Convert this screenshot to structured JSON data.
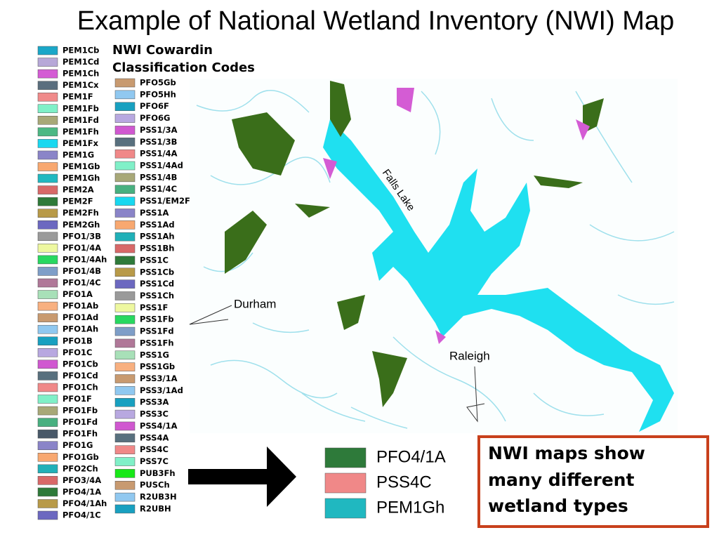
{
  "title": "Example of National Wetland Inventory (NWI) Map",
  "legend": {
    "heading_line1": "NWI Cowardin",
    "heading_line2": "Classification Codes",
    "column1": [
      {
        "label": "PEM1Cb",
        "color": "#1aa7c8"
      },
      {
        "label": "PEM1Cd",
        "color": "#b7a8d8"
      },
      {
        "label": "PEM1Ch",
        "color": "#d45cd4"
      },
      {
        "label": "PEM1Cx",
        "color": "#5a6e7e"
      },
      {
        "label": "PEM1F",
        "color": "#f08a8a"
      },
      {
        "label": "PEM1Fb",
        "color": "#7ff0c8"
      },
      {
        "label": "PEM1Fd",
        "color": "#a8a878"
      },
      {
        "label": "PEM1Fh",
        "color": "#4cb884"
      },
      {
        "label": "PEM1Fx",
        "color": "#1ad8f0"
      },
      {
        "label": "PEM1G",
        "color": "#8a84c8"
      },
      {
        "label": "PEM1Gb",
        "color": "#f8a870"
      },
      {
        "label": "PEM1Gh",
        "color": "#20b8c0"
      },
      {
        "label": "PEM2A",
        "color": "#d86868"
      },
      {
        "label": "PEM2F",
        "color": "#2e7a3a"
      },
      {
        "label": "PEM2Fh",
        "color": "#b89a48"
      },
      {
        "label": "PEM2Gh",
        "color": "#6c68c0"
      },
      {
        "label": "PFO1/3B",
        "color": "#9a9a9a"
      },
      {
        "label": "PFO1/4A",
        "color": "#eef8a0"
      },
      {
        "label": "PFO1/4Ah",
        "color": "#28d860"
      },
      {
        "label": "PFO1/4B",
        "color": "#7e9ec8"
      },
      {
        "label": "PFO1/4C",
        "color": "#b07898"
      },
      {
        "label": "PFO1A",
        "color": "#a8e0b8"
      },
      {
        "label": "PFO1Ab",
        "color": "#f8b080"
      },
      {
        "label": "PFO1Ad",
        "color": "#c89a70"
      },
      {
        "label": "PFO1Ah",
        "color": "#90c8f0"
      },
      {
        "label": "PFO1B",
        "color": "#18a0c0"
      },
      {
        "label": "PFO1C",
        "color": "#b8a8e0"
      },
      {
        "label": "PFO1Cb",
        "color": "#d058d0"
      },
      {
        "label": "PFO1Cd",
        "color": "#58707e"
      },
      {
        "label": "PFO1Ch",
        "color": "#f08888"
      },
      {
        "label": "PFO1F",
        "color": "#80f0c8"
      },
      {
        "label": "PFO1Fb",
        "color": "#a8a878"
      },
      {
        "label": "PFO1Fd",
        "color": "#48b080"
      },
      {
        "label": "PFO1Fh",
        "color": "#485868"
      },
      {
        "label": "PFO1G",
        "color": "#8a84c8"
      },
      {
        "label": "PFO1Gb",
        "color": "#f8a870"
      },
      {
        "label": "PFO2Ch",
        "color": "#20b0b8"
      },
      {
        "label": "PFO3/4A",
        "color": "#d86868"
      },
      {
        "label": "PFO4/1A",
        "color": "#2e7a3a"
      },
      {
        "label": "PFO4/1Ah",
        "color": "#b89a48"
      },
      {
        "label": "PFO4/1C",
        "color": "#6c68c0"
      }
    ],
    "column2": [
      {
        "label": "PFO5Gb",
        "color": "#c89a70"
      },
      {
        "label": "PFO5Hh",
        "color": "#90c8f0"
      },
      {
        "label": "PFO6F",
        "color": "#18a0c0"
      },
      {
        "label": "PFO6G",
        "color": "#b8a8e0"
      },
      {
        "label": "PSS1/3A",
        "color": "#d058d0"
      },
      {
        "label": "PSS1/3B",
        "color": "#58707e"
      },
      {
        "label": "PSS1/4A",
        "color": "#f08888"
      },
      {
        "label": "PSS1/4Ad",
        "color": "#80f0c8"
      },
      {
        "label": "PSS1/4B",
        "color": "#a8a878"
      },
      {
        "label": "PSS1/4C",
        "color": "#48b080"
      },
      {
        "label": "PSS1/EM2F",
        "color": "#18d8f0"
      },
      {
        "label": "PSS1A",
        "color": "#8a84c8"
      },
      {
        "label": "PSS1Ad",
        "color": "#f8a870"
      },
      {
        "label": "PSS1Ah",
        "color": "#20b0b8"
      },
      {
        "label": "PSS1Bh",
        "color": "#d86868"
      },
      {
        "label": "PSS1C",
        "color": "#2e7a3a"
      },
      {
        "label": "PSS1Cb",
        "color": "#b89a48"
      },
      {
        "label": "PSS1Cd",
        "color": "#6c68c0"
      },
      {
        "label": "PSS1Ch",
        "color": "#9a9a9a"
      },
      {
        "label": "PSS1F",
        "color": "#eef8a0"
      },
      {
        "label": "PSS1Fb",
        "color": "#28d860"
      },
      {
        "label": "PSS1Fd",
        "color": "#7e9ec8"
      },
      {
        "label": "PSS1Fh",
        "color": "#b07898"
      },
      {
        "label": "PSS1G",
        "color": "#a8e0b8"
      },
      {
        "label": "PSS1Gb",
        "color": "#f8b080"
      },
      {
        "label": "PSS3/1A",
        "color": "#c89a70"
      },
      {
        "label": "PSS3/1Ad",
        "color": "#90c8f0"
      },
      {
        "label": "PSS3A",
        "color": "#18a0c0"
      },
      {
        "label": "PSS3C",
        "color": "#b8a8e0"
      },
      {
        "label": "PSS4/1A",
        "color": "#d058d0"
      },
      {
        "label": "PSS4A",
        "color": "#58707e"
      },
      {
        "label": "PSS4C",
        "color": "#f08888"
      },
      {
        "label": "PSS7C",
        "color": "#80f0c8"
      },
      {
        "label": "PUB3Fh",
        "color": "#18e818"
      },
      {
        "label": "PUSCh",
        "color": "#c89a70"
      },
      {
        "label": "R2UB3H",
        "color": "#90c8f0"
      },
      {
        "label": "R2UBH",
        "color": "#18a0c0"
      }
    ]
  },
  "map": {
    "lake_label": "Falls Lake",
    "city1": "Durham",
    "city2": "Raleigh"
  },
  "callout": {
    "items": [
      {
        "label": "PFO4/1A",
        "color": "#2e7a3a"
      },
      {
        "label": "PSS4C",
        "color": "#f08888"
      },
      {
        "label": "PEM1Gh",
        "color": "#20b8c0"
      }
    ]
  },
  "note": {
    "line1": "NWI maps show",
    "line2": "many different",
    "line3": "wetland types"
  }
}
